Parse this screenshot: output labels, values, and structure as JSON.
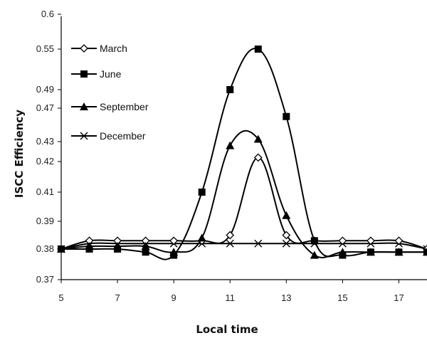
{
  "chart_data": {
    "type": "line",
    "title": "",
    "xlabel": "Local time",
    "ylabel": "ISCC Efficiency",
    "xlim": [
      5,
      18
    ],
    "ylim": [
      0.37,
      0.6
    ],
    "x_ticks": [
      "5",
      "7",
      "9",
      "11",
      "13",
      "15",
      "17"
    ],
    "y_ticks": [
      "0.37",
      "0.38",
      "0.39",
      "0.41",
      "0.42",
      "0.43",
      "0.47",
      "0.49",
      "0.55",
      "0.6"
    ],
    "grid": false,
    "legend_position": "top-left",
    "series": [
      {
        "name": "March",
        "marker": "open-diamond",
        "x": [
          5,
          6,
          7,
          8,
          9,
          10,
          11,
          12,
          13,
          14,
          15,
          16,
          17,
          18
        ],
        "y": [
          0.38,
          0.383,
          0.383,
          0.383,
          0.383,
          0.383,
          0.385,
          0.422,
          0.385,
          0.383,
          0.383,
          0.383,
          0.383,
          0.38
        ]
      },
      {
        "name": "June",
        "marker": "filled-square",
        "x": [
          5,
          6,
          7,
          8,
          9,
          10,
          11,
          12,
          13,
          14,
          15,
          16,
          17,
          18
        ],
        "y": [
          0.38,
          0.38,
          0.38,
          0.379,
          0.378,
          0.41,
          0.49,
          0.55,
          0.46,
          0.383,
          0.378,
          0.379,
          0.379,
          0.379
        ]
      },
      {
        "name": "September",
        "marker": "filled-triangle",
        "x": [
          5,
          6,
          7,
          8,
          9,
          10,
          11,
          12,
          13,
          14,
          15,
          16,
          17,
          18
        ],
        "y": [
          0.38,
          0.381,
          0.381,
          0.381,
          0.379,
          0.384,
          0.428,
          0.433,
          0.394,
          0.378,
          0.379,
          0.379,
          0.379,
          0.379
        ]
      },
      {
        "name": "December",
        "marker": "x",
        "x": [
          5,
          6,
          7,
          8,
          9,
          10,
          11,
          12,
          13,
          14,
          15,
          16,
          17,
          18
        ],
        "y": [
          0.38,
          0.382,
          0.382,
          0.382,
          0.382,
          0.382,
          0.382,
          0.382,
          0.382,
          0.382,
          0.382,
          0.382,
          0.382,
          0.38
        ]
      }
    ]
  }
}
